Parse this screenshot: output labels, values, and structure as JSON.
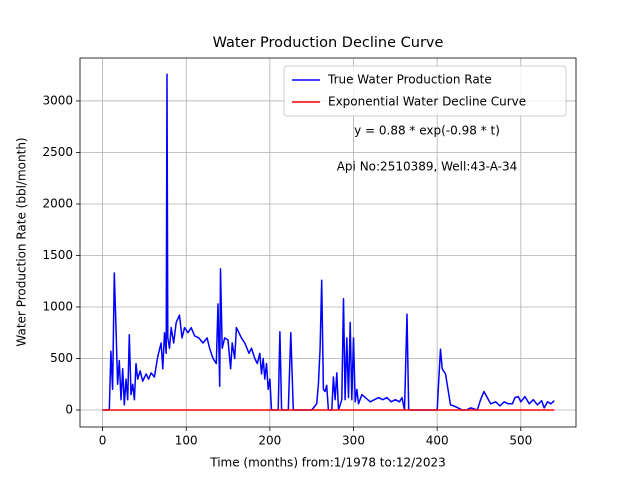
{
  "chart_data": {
    "type": "line",
    "title": "Water Production Decline Curve",
    "xlabel": "Time (months) from:1/1978 to:12/2023",
    "ylabel": "Water Production Rate (bbl/month)",
    "annotations": [
      "y = 0.88 * exp(-0.98 * t)",
      "Api No:2510389, Well:43-A-34"
    ],
    "xlim": [
      -27,
      566
    ],
    "ylim": [
      -165,
      3417
    ],
    "xticks": [
      0,
      100,
      200,
      300,
      400,
      500
    ],
    "yticks": [
      0,
      500,
      1000,
      1500,
      2000,
      2500,
      3000
    ],
    "grid": true,
    "legend": "upper right",
    "series": [
      {
        "name": "True Water Production Rate",
        "color": "#0000ff",
        "x": [
          0,
          8,
          10,
          12,
          14,
          16,
          18,
          20,
          22,
          24,
          26,
          28,
          30,
          32,
          34,
          36,
          38,
          40,
          42,
          45,
          48,
          52,
          55,
          58,
          62,
          66,
          70,
          72,
          74,
          76,
          77,
          78,
          80,
          82,
          85,
          88,
          92,
          95,
          98,
          102,
          106,
          110,
          115,
          120,
          125,
          128,
          132,
          136,
          138,
          140,
          141,
          143,
          146,
          150,
          153,
          155,
          158,
          160,
          163,
          166,
          170,
          175,
          178,
          182,
          185,
          188,
          190,
          192,
          194,
          196,
          198,
          200,
          202,
          206,
          210,
          212,
          214,
          222,
          225,
          228,
          240,
          250,
          256,
          258,
          260,
          262,
          264,
          266,
          268,
          270,
          274,
          276,
          278,
          280,
          282,
          286,
          288,
          290,
          292,
          294,
          296,
          298,
          300,
          302,
          304,
          306,
          310,
          320,
          330,
          335,
          340,
          345,
          350,
          355,
          358,
          361,
          364,
          366,
          372,
          380,
          390,
          400,
          402,
          404,
          406,
          410,
          413,
          416,
          420,
          425,
          430,
          435,
          440,
          448,
          452,
          456,
          460,
          464,
          470,
          475,
          480,
          485,
          490,
          493,
          497,
          500,
          505,
          510,
          515,
          520,
          525,
          528,
          532,
          536,
          540
        ],
        "values": [
          0,
          0,
          570,
          200,
          1330,
          800,
          250,
          480,
          100,
          400,
          50,
          300,
          100,
          730,
          150,
          250,
          100,
          450,
          300,
          380,
          280,
          350,
          300,
          360,
          320,
          520,
          650,
          400,
          750,
          550,
          3260,
          700,
          600,
          800,
          650,
          850,
          920,
          700,
          800,
          750,
          800,
          720,
          700,
          650,
          700,
          600,
          500,
          450,
          1030,
          230,
          1370,
          600,
          700,
          680,
          400,
          650,
          500,
          800,
          750,
          700,
          650,
          550,
          600,
          500,
          450,
          550,
          350,
          500,
          300,
          450,
          200,
          300,
          0,
          0,
          0,
          760,
          0,
          0,
          750,
          0,
          0,
          0,
          60,
          250,
          600,
          1260,
          200,
          180,
          240,
          0,
          0,
          320,
          100,
          360,
          0,
          100,
          1080,
          100,
          700,
          120,
          850,
          100,
          700,
          80,
          200,
          60,
          150,
          80,
          120,
          100,
          120,
          80,
          100,
          80,
          120,
          0,
          930,
          0,
          0,
          0,
          0,
          0,
          300,
          590,
          400,
          350,
          200,
          50,
          40,
          20,
          0,
          0,
          20,
          0,
          100,
          180,
          120,
          60,
          80,
          40,
          80,
          60,
          60,
          120,
          130,
          80,
          130,
          60,
          100,
          50,
          90,
          20,
          80,
          60,
          90
        ]
      },
      {
        "name": "Exponential Water Decline Curve",
        "color": "#ff0000",
        "x": [
          0,
          1,
          2,
          540
        ],
        "values": [
          0.88,
          0.33,
          0.12,
          0
        ]
      }
    ]
  }
}
